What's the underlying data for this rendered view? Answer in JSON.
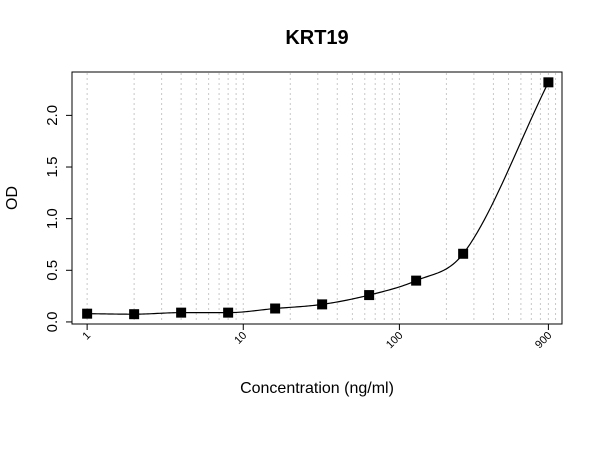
{
  "chart_data": {
    "type": "scatter",
    "title": "KRT19",
    "xlabel": "Concentration (ng/ml)",
    "ylabel": "OD",
    "x_scale": "log",
    "xlim": [
      0.8,
      1100
    ],
    "ylim": [
      -0.02,
      2.42
    ],
    "x_ticks": [
      1,
      10,
      100,
      900
    ],
    "x_tick_labels": [
      "1",
      "10",
      "100",
      "900"
    ],
    "y_ticks": [
      0,
      0.5,
      1,
      1.5,
      2
    ],
    "y_tick_labels": [
      "0.0",
      "0.5",
      "1.0",
      "1.5",
      "2.0"
    ],
    "grid": "vertical dotted at log decades",
    "marker": "filled-square",
    "fit_line": "smooth curve",
    "series": [
      {
        "x": [
          1,
          2,
          4,
          8,
          16,
          32,
          64,
          128,
          256,
          900
        ],
        "y": [
          0.08,
          0.075,
          0.09,
          0.09,
          0.13,
          0.17,
          0.26,
          0.4,
          0.66,
          2.32
        ]
      }
    ]
  }
}
